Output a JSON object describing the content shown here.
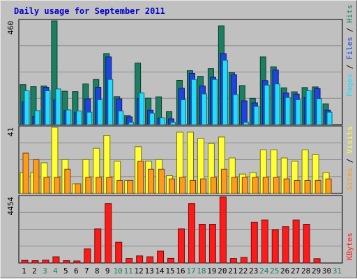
{
  "title": "Daily usage for September 2011",
  "colors": {
    "background": "#c0c0c0",
    "plot_bg": "#c0c0c0",
    "grid": "#8c8c8c",
    "hits": "#1b7f63",
    "files": "#1d44e2",
    "pages": "#22ddff",
    "visits": "#ffff33",
    "sites": "#ff9a1a",
    "kbytes": "#ff1a1a",
    "weekend_label": "#1b7f63",
    "weekday_label": "#000000",
    "title": "#0000cc"
  },
  "chart_data": [
    {
      "type": "bar",
      "panel": "hits-files-pages",
      "ymax_label": "460",
      "ymax": 460,
      "right_labels": [
        "Pages",
        "Files",
        "Hits"
      ],
      "categories": [
        "1",
        "2",
        "3",
        "4",
        "5",
        "6",
        "7",
        "8",
        "9",
        "10",
        "11",
        "12",
        "13",
        "14",
        "15",
        "16",
        "17",
        "18",
        "19",
        "20",
        "21",
        "22",
        "23",
        "24",
        "25",
        "26",
        "27",
        "28",
        "29",
        "30",
        "31"
      ],
      "series": [
        {
          "name": "Hits",
          "values": [
            177,
            168,
            171,
            460,
            148,
            146,
            180,
            200,
            315,
            124,
            40,
            273,
            117,
            123,
            57,
            196,
            239,
            214,
            248,
            438,
            230,
            173,
            116,
            300,
            256,
            163,
            145,
            164,
            167,
            92,
            0
          ]
        },
        {
          "name": "Files",
          "values": [
            100,
            35,
            165,
            110,
            62,
            53,
            114,
            165,
            300,
            114,
            34,
            115,
            64,
            28,
            25,
            161,
            227,
            171,
            210,
            315,
            221,
            105,
            96,
            195,
            242,
            140,
            135,
            120,
            160,
            64,
            0
          ]
        },
        {
          "name": "Pages",
          "values": [
            150,
            62,
            150,
            158,
            65,
            60,
            55,
            110,
            200,
            60,
            10,
            140,
            50,
            30,
            10,
            110,
            200,
            136,
            200,
            285,
            133,
            10,
            80,
            175,
            180,
            120,
            110,
            150,
            115,
            55,
            0
          ]
        }
      ],
      "weekends": [
        3,
        4,
        10,
        11,
        17,
        18,
        24,
        25,
        31
      ]
    },
    {
      "type": "bar",
      "panel": "visits-sites",
      "ymax_label": "41",
      "ymax": 41,
      "right_labels": [
        "Sites",
        "Visits"
      ],
      "categories": [
        "1",
        "2",
        "3",
        "4",
        "5",
        "6",
        "7",
        "8",
        "9",
        "10",
        "11",
        "12",
        "13",
        "14",
        "15",
        "16",
        "17",
        "18",
        "19",
        "20",
        "21",
        "22",
        "23",
        "24",
        "25",
        "26",
        "27",
        "28",
        "29",
        "30",
        "31"
      ],
      "series": [
        {
          "name": "Visits",
          "values": [
            13,
            13,
            19,
            41,
            21,
            6,
            21,
            28,
            36,
            20,
            8,
            29,
            20,
            21,
            11,
            38,
            38,
            34,
            31,
            35,
            22,
            12,
            13,
            27,
            27,
            22,
            20,
            27,
            24,
            13,
            0
          ]
        },
        {
          "name": "Sites",
          "values": [
            25,
            21,
            10,
            10,
            15,
            6,
            10,
            10,
            10,
            8,
            8,
            20,
            15,
            15,
            9,
            10,
            8,
            9,
            10,
            15,
            10,
            10,
            10,
            10,
            10,
            9,
            8,
            8,
            8,
            9,
            0
          ]
        }
      ]
    },
    {
      "type": "bar",
      "panel": "kbytes",
      "ymax_label": "4454",
      "ymax": 4454,
      "right_labels": [
        "KBytes"
      ],
      "categories": [
        "1",
        "2",
        "3",
        "4",
        "5",
        "6",
        "7",
        "8",
        "9",
        "10",
        "11",
        "12",
        "13",
        "14",
        "15",
        "16",
        "17",
        "18",
        "19",
        "20",
        "21",
        "22",
        "23",
        "24",
        "25",
        "26",
        "27",
        "28",
        "29",
        "30",
        "31"
      ],
      "series": [
        {
          "name": "KBytes",
          "values": [
            180,
            160,
            190,
            420,
            160,
            140,
            950,
            2300,
            4000,
            1400,
            300,
            480,
            420,
            800,
            310,
            2300,
            4000,
            2600,
            2600,
            4454,
            300,
            380,
            2750,
            2900,
            2250,
            2450,
            2900,
            2600,
            290,
            0,
            0
          ]
        }
      ],
      "xlabels_weekend": [
        3,
        4,
        10,
        11,
        17,
        18,
        24,
        25,
        31
      ]
    }
  ]
}
